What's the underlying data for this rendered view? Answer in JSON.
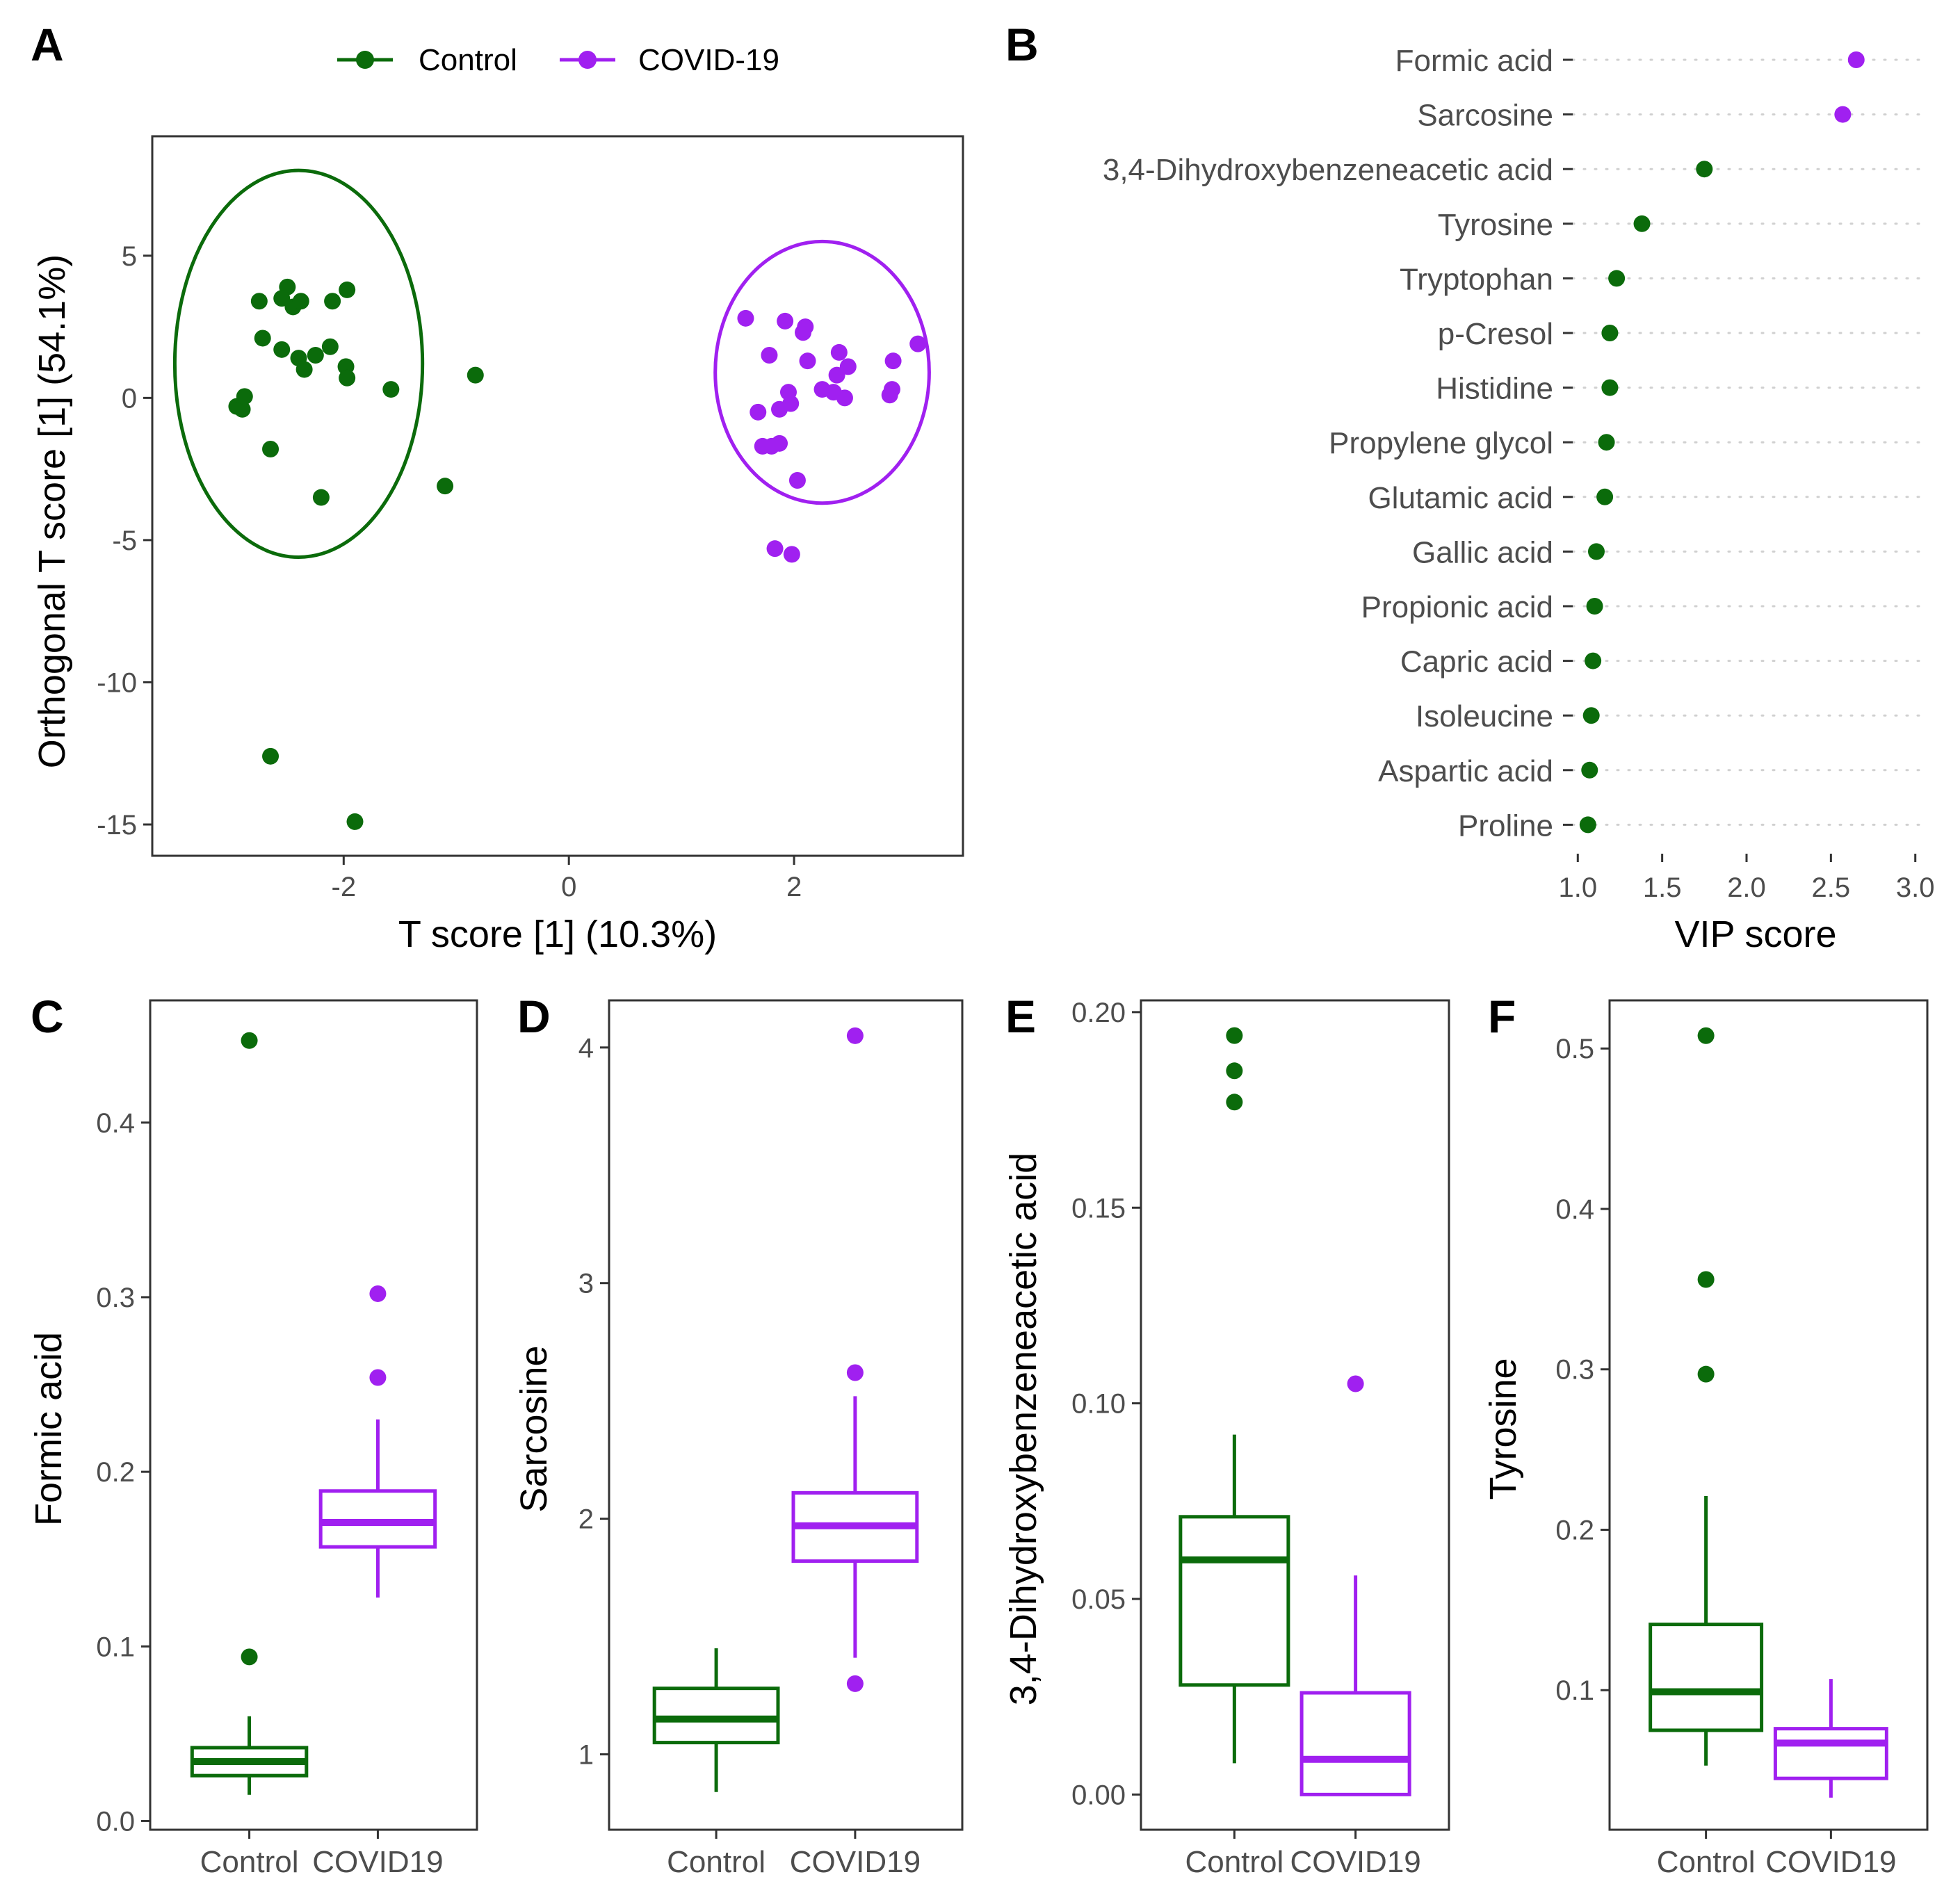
{
  "colors": {
    "control": "#0b6b0b",
    "covid": "#a020f0"
  },
  "legend": [
    {
      "label": "Control",
      "series": "control"
    },
    {
      "label": "COVID-19",
      "series": "covid"
    }
  ],
  "chart_data": [
    {
      "panel": "A",
      "type": "scatter",
      "xlabel": "T score [1] (10.3%)",
      "ylabel": "Orthogonal T score [1] (54.1%)",
      "xlim": [
        -3.7,
        3.5
      ],
      "ylim": [
        -16.1,
        9.2
      ],
      "xticks": [
        -2,
        0,
        2
      ],
      "xtick_labels": [
        "-2",
        "0",
        "2"
      ],
      "yticks": [
        -15,
        -10,
        -5,
        0,
        5
      ],
      "ytick_labels": [
        "-15",
        "-10",
        "-5",
        "0",
        "5"
      ],
      "ellipses": [
        {
          "series": "control",
          "cx": -2.4,
          "cy": 1.2,
          "rx": 1.1,
          "ry": 6.8,
          "angle": 0
        },
        {
          "series": "covid",
          "cx": 2.25,
          "cy": 0.9,
          "rx": 0.95,
          "ry": 4.6,
          "angle": 0
        }
      ],
      "series": [
        {
          "name": "Control",
          "key": "control",
          "points": [
            [
              -2.75,
              3.4
            ],
            [
              -2.5,
              3.9
            ],
            [
              -2.55,
              3.5
            ],
            [
              -2.45,
              3.2
            ],
            [
              -2.38,
              3.4
            ],
            [
              -2.1,
              3.4
            ],
            [
              -1.97,
              3.8
            ],
            [
              -2.72,
              2.1
            ],
            [
              -2.55,
              1.7
            ],
            [
              -2.4,
              1.4
            ],
            [
              -2.25,
              1.5
            ],
            [
              -2.12,
              1.8
            ],
            [
              -2.35,
              1.0
            ],
            [
              -1.98,
              1.1
            ],
            [
              -1.97,
              0.7
            ],
            [
              -1.58,
              0.3
            ],
            [
              -0.83,
              0.8
            ],
            [
              -2.95,
              -0.3
            ],
            [
              -2.9,
              -0.4
            ],
            [
              -2.88,
              0.05
            ],
            [
              -2.65,
              -1.8
            ],
            [
              -1.1,
              -3.1
            ],
            [
              -2.2,
              -3.5
            ],
            [
              -2.65,
              -12.6
            ],
            [
              -1.9,
              -14.9
            ]
          ]
        },
        {
          "name": "COVID-19",
          "key": "covid",
          "points": [
            [
              1.57,
              2.8
            ],
            [
              1.92,
              2.7
            ],
            [
              2.1,
              2.5
            ],
            [
              2.08,
              2.3
            ],
            [
              1.78,
              1.5
            ],
            [
              2.12,
              1.3
            ],
            [
              2.4,
              1.6
            ],
            [
              2.48,
              1.1
            ],
            [
              2.38,
              0.8
            ],
            [
              2.88,
              1.3
            ],
            [
              3.1,
              1.9
            ],
            [
              1.95,
              0.2
            ],
            [
              2.25,
              0.3
            ],
            [
              2.35,
              0.2
            ],
            [
              2.45,
              0.0
            ],
            [
              2.85,
              0.1
            ],
            [
              2.87,
              0.3
            ],
            [
              1.68,
              -0.5
            ],
            [
              1.87,
              -0.4
            ],
            [
              1.97,
              -0.2
            ],
            [
              1.72,
              -1.7
            ],
            [
              1.8,
              -1.7
            ],
            [
              1.87,
              -1.6
            ],
            [
              2.03,
              -2.9
            ],
            [
              1.83,
              -5.3
            ],
            [
              1.98,
              -5.5
            ]
          ]
        }
      ]
    },
    {
      "panel": "B",
      "type": "scatter",
      "xlabel": "VIP score",
      "xlim": [
        0.97,
        3.03
      ],
      "xticks": [
        1.0,
        1.5,
        2.0,
        2.5,
        3.0
      ],
      "xtick_labels": [
        "1.0",
        "1.5",
        "2.0",
        "2.5",
        "3.0"
      ],
      "items": [
        {
          "label": "Formic acid",
          "value": 2.65,
          "series": "covid"
        },
        {
          "label": "Sarcosine",
          "value": 2.57,
          "series": "covid"
        },
        {
          "label": "3,4-Dihydroxybenzeneacetic acid",
          "value": 1.75,
          "series": "control"
        },
        {
          "label": "Tyrosine",
          "value": 1.38,
          "series": "control"
        },
        {
          "label": "Tryptophan",
          "value": 1.23,
          "series": "control"
        },
        {
          "label": "p-Cresol",
          "value": 1.19,
          "series": "control"
        },
        {
          "label": "Histidine",
          "value": 1.19,
          "series": "control"
        },
        {
          "label": "Propylene glycol",
          "value": 1.17,
          "series": "control"
        },
        {
          "label": "Glutamic acid",
          "value": 1.16,
          "series": "control"
        },
        {
          "label": "Gallic acid",
          "value": 1.11,
          "series": "control"
        },
        {
          "label": "Propionic acid",
          "value": 1.1,
          "series": "control"
        },
        {
          "label": "Capric acid",
          "value": 1.09,
          "series": "control"
        },
        {
          "label": "Isoleucine",
          "value": 1.08,
          "series": "control"
        },
        {
          "label": "Aspartic acid",
          "value": 1.07,
          "series": "control"
        },
        {
          "label": "Proline",
          "value": 1.06,
          "series": "control"
        }
      ]
    },
    {
      "panel": "C",
      "type": "box",
      "ylabel": "Formic acid",
      "ylim": [
        -0.005,
        0.47
      ],
      "yticks": [
        0.0,
        0.1,
        0.2,
        0.3,
        0.4
      ],
      "ytick_labels": [
        "0.0",
        "0.1",
        "0.2",
        "0.3",
        "0.4"
      ],
      "groups": [
        {
          "label": "Control",
          "series": "control",
          "whisker_low": 0.015,
          "q1": 0.026,
          "median": 0.034,
          "q3": 0.042,
          "whisker_high": 0.06,
          "outliers": [
            0.094,
            0.447
          ]
        },
        {
          "label": "COVID19",
          "series": "covid",
          "whisker_low": 0.128,
          "q1": 0.157,
          "median": 0.171,
          "q3": 0.189,
          "whisker_high": 0.23,
          "outliers": [
            0.254,
            0.302
          ]
        }
      ]
    },
    {
      "panel": "D",
      "type": "box",
      "ylabel": "Sarcosine",
      "ylim": [
        0.68,
        4.2
      ],
      "yticks": [
        1,
        2,
        3,
        4
      ],
      "ytick_labels": [
        "1",
        "2",
        "3",
        "4"
      ],
      "groups": [
        {
          "label": "Control",
          "series": "control",
          "whisker_low": 0.84,
          "q1": 1.05,
          "median": 1.15,
          "q3": 1.28,
          "whisker_high": 1.45,
          "outliers": []
        },
        {
          "label": "COVID19",
          "series": "covid",
          "whisker_low": 1.41,
          "q1": 1.82,
          "median": 1.97,
          "q3": 2.11,
          "whisker_high": 2.52,
          "outliers": [
            1.3,
            2.62,
            4.05
          ]
        }
      ]
    },
    {
      "panel": "E",
      "type": "box",
      "ylabel": "3,4-Dihydroxybenzeneacetic acid",
      "ylim": [
        -0.009,
        0.203
      ],
      "yticks": [
        0.0,
        0.05,
        0.1,
        0.15,
        0.2
      ],
      "ytick_labels": [
        "0.00",
        "0.05",
        "0.10",
        "0.15",
        "0.20"
      ],
      "groups": [
        {
          "label": "Control",
          "series": "control",
          "whisker_low": 0.008,
          "q1": 0.028,
          "median": 0.06,
          "q3": 0.071,
          "whisker_high": 0.092,
          "outliers": [
            0.177,
            0.185,
            0.194
          ]
        },
        {
          "label": "COVID19",
          "series": "covid",
          "whisker_low": 0.0,
          "q1": 0.0,
          "median": 0.009,
          "q3": 0.026,
          "whisker_high": 0.056,
          "outliers": [
            0.105
          ]
        }
      ]
    },
    {
      "panel": "F",
      "type": "box",
      "ylabel": "Tyrosine",
      "ylim": [
        0.013,
        0.53
      ],
      "yticks": [
        0.1,
        0.2,
        0.3,
        0.4,
        0.5
      ],
      "ytick_labels": [
        "0.1",
        "0.2",
        "0.3",
        "0.4",
        "0.5"
      ],
      "groups": [
        {
          "label": "Control",
          "series": "control",
          "whisker_low": 0.053,
          "q1": 0.075,
          "median": 0.099,
          "q3": 0.141,
          "whisker_high": 0.221,
          "outliers": [
            0.297,
            0.356,
            0.508
          ]
        },
        {
          "label": "COVID19",
          "series": "covid",
          "whisker_low": 0.033,
          "q1": 0.045,
          "median": 0.067,
          "q3": 0.076,
          "whisker_high": 0.107,
          "outliers": []
        }
      ]
    }
  ]
}
